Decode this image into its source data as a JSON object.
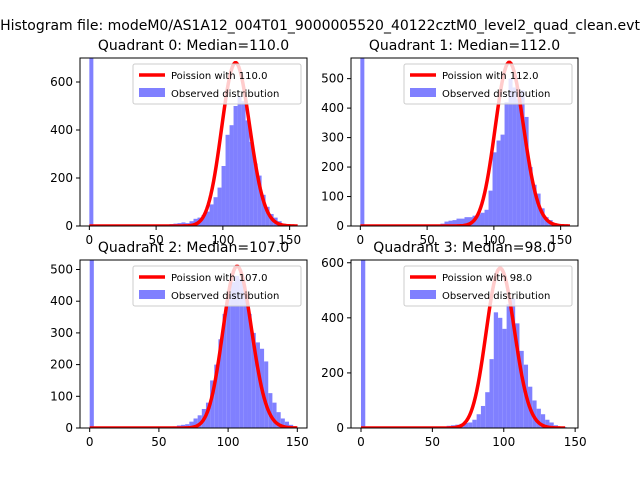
{
  "suptitle": "Histogram file: modeM0/AS1A12_004T01_9000005520_40122cztM0_level2_quad_clean.evt",
  "colors": {
    "poisson": "#ff0000",
    "observed": "#8080ff",
    "axes": "#000000"
  },
  "chart_data": [
    {
      "type": "bar",
      "title": "Quadrant 0: Median=110.0",
      "xlim": [
        -7,
        163
      ],
      "ylim": [
        0,
        700
      ],
      "xticks": [
        0,
        50,
        100,
        150
      ],
      "yticks": [
        0,
        200,
        400,
        600
      ],
      "legend_position": "top-right",
      "legend": [
        "Poission with 110.0",
        "Observed distribution"
      ],
      "poisson_mean": 110.0,
      "bin_width": 3,
      "histogram": {
        "name": "Observed distribution",
        "bins": [
          [
            0,
            700
          ],
          [
            54,
            5
          ],
          [
            57,
            5
          ],
          [
            60,
            8
          ],
          [
            63,
            10
          ],
          [
            66,
            12
          ],
          [
            69,
            15
          ],
          [
            72,
            12
          ],
          [
            75,
            20
          ],
          [
            78,
            30
          ],
          [
            81,
            35
          ],
          [
            84,
            45
          ],
          [
            87,
            60
          ],
          [
            90,
            90
          ],
          [
            93,
            120
          ],
          [
            96,
            160
          ],
          [
            99,
            250
          ],
          [
            102,
            380
          ],
          [
            105,
            420
          ],
          [
            108,
            500
          ],
          [
            111,
            540
          ],
          [
            114,
            520
          ],
          [
            117,
            440
          ],
          [
            120,
            350
          ],
          [
            123,
            260
          ],
          [
            126,
            210
          ],
          [
            129,
            130
          ],
          [
            132,
            80
          ],
          [
            135,
            50
          ],
          [
            138,
            35
          ],
          [
            141,
            20
          ],
          [
            144,
            10
          ],
          [
            147,
            5
          ],
          [
            150,
            3
          ],
          [
            153,
            2
          ]
        ]
      },
      "poisson": {
        "name": "Poission with 110.0",
        "x_range": [
          0,
          156
        ],
        "amplitude": 680
      }
    },
    {
      "type": "bar",
      "title": "Quadrant 1: Median=112.0",
      "xlim": [
        -7,
        163
      ],
      "ylim": [
        0,
        570
      ],
      "xticks": [
        0,
        50,
        100,
        150
      ],
      "yticks": [
        0,
        100,
        200,
        300,
        400,
        500
      ],
      "legend_position": "top-right",
      "legend": [
        "Poission with 112.0",
        "Observed distribution"
      ],
      "poisson_mean": 112.0,
      "bin_width": 3,
      "histogram": {
        "name": "Observed distribution",
        "bins": [
          [
            0,
            570
          ],
          [
            54,
            5
          ],
          [
            57,
            5
          ],
          [
            60,
            8
          ],
          [
            63,
            15
          ],
          [
            66,
            18
          ],
          [
            69,
            20
          ],
          [
            72,
            25
          ],
          [
            75,
            25
          ],
          [
            78,
            30
          ],
          [
            81,
            30
          ],
          [
            84,
            35
          ],
          [
            87,
            40
          ],
          [
            90,
            45
          ],
          [
            93,
            55
          ],
          [
            96,
            120
          ],
          [
            99,
            250
          ],
          [
            102,
            290
          ],
          [
            105,
            310
          ],
          [
            108,
            420
          ],
          [
            111,
            500
          ],
          [
            114,
            470
          ],
          [
            117,
            430
          ],
          [
            120,
            460
          ],
          [
            123,
            370
          ],
          [
            126,
            200
          ],
          [
            129,
            140
          ],
          [
            132,
            110
          ],
          [
            135,
            60
          ],
          [
            138,
            30
          ],
          [
            141,
            20
          ],
          [
            144,
            10
          ],
          [
            147,
            5
          ],
          [
            150,
            3
          ],
          [
            153,
            2
          ]
        ]
      },
      "poisson": {
        "name": "Poission with 112.0",
        "x_range": [
          0,
          157
        ],
        "amplitude": 555
      }
    },
    {
      "type": "bar",
      "title": "Quadrant 2: Median=107.0",
      "xlim": [
        -7,
        157
      ],
      "ylim": [
        0,
        530
      ],
      "xticks": [
        0,
        50,
        100,
        150
      ],
      "yticks": [
        0,
        100,
        200,
        300,
        400,
        500
      ],
      "legend_position": "top-right",
      "legend": [
        "Poission with 107.0",
        "Observed distribution"
      ],
      "poisson_mean": 107.0,
      "bin_width": 3,
      "histogram": {
        "name": "Observed distribution",
        "bins": [
          [
            0,
            530
          ],
          [
            60,
            5
          ],
          [
            63,
            8
          ],
          [
            66,
            10
          ],
          [
            69,
            12
          ],
          [
            72,
            20
          ],
          [
            75,
            30
          ],
          [
            78,
            40
          ],
          [
            81,
            60
          ],
          [
            84,
            80
          ],
          [
            87,
            150
          ],
          [
            90,
            200
          ],
          [
            93,
            280
          ],
          [
            96,
            360
          ],
          [
            99,
            420
          ],
          [
            102,
            460
          ],
          [
            105,
            480
          ],
          [
            108,
            470
          ],
          [
            111,
            430
          ],
          [
            114,
            360
          ],
          [
            117,
            300
          ],
          [
            120,
            270
          ],
          [
            123,
            250
          ],
          [
            126,
            210
          ],
          [
            129,
            110
          ],
          [
            132,
            80
          ],
          [
            135,
            50
          ],
          [
            138,
            30
          ],
          [
            141,
            20
          ],
          [
            144,
            10
          ],
          [
            147,
            5
          ]
        ]
      },
      "poisson": {
        "name": "Poission with 107.0",
        "x_range": [
          0,
          150
        ],
        "amplitude": 510
      }
    },
    {
      "type": "bar",
      "title": "Quadrant 3: Median=98.0",
      "xlim": [
        -7,
        152
      ],
      "ylim": [
        0,
        610
      ],
      "xticks": [
        0,
        50,
        100,
        150
      ],
      "yticks": [
        0,
        200,
        400,
        600
      ],
      "legend_position": "top-right",
      "legend": [
        "Poission with 98.0",
        "Observed distribution"
      ],
      "poisson_mean": 98.0,
      "bin_width": 3,
      "histogram": {
        "name": "Observed distribution",
        "bins": [
          [
            0,
            610
          ],
          [
            54,
            5
          ],
          [
            57,
            5
          ],
          [
            60,
            8
          ],
          [
            63,
            10
          ],
          [
            66,
            12
          ],
          [
            69,
            15
          ],
          [
            72,
            18
          ],
          [
            75,
            20
          ],
          [
            78,
            30
          ],
          [
            81,
            50
          ],
          [
            84,
            80
          ],
          [
            87,
            130
          ],
          [
            90,
            250
          ],
          [
            93,
            420
          ],
          [
            96,
            400
          ],
          [
            99,
            360
          ],
          [
            102,
            450
          ],
          [
            105,
            470
          ],
          [
            108,
            380
          ],
          [
            111,
            280
          ],
          [
            114,
            230
          ],
          [
            117,
            150
          ],
          [
            120,
            100
          ],
          [
            123,
            70
          ],
          [
            126,
            50
          ],
          [
            129,
            30
          ],
          [
            132,
            20
          ],
          [
            135,
            10
          ],
          [
            138,
            5
          ],
          [
            141,
            3
          ]
        ]
      },
      "poisson": {
        "name": "Poission with 98.0",
        "x_range": [
          0,
          143
        ],
        "amplitude": 580
      }
    }
  ]
}
